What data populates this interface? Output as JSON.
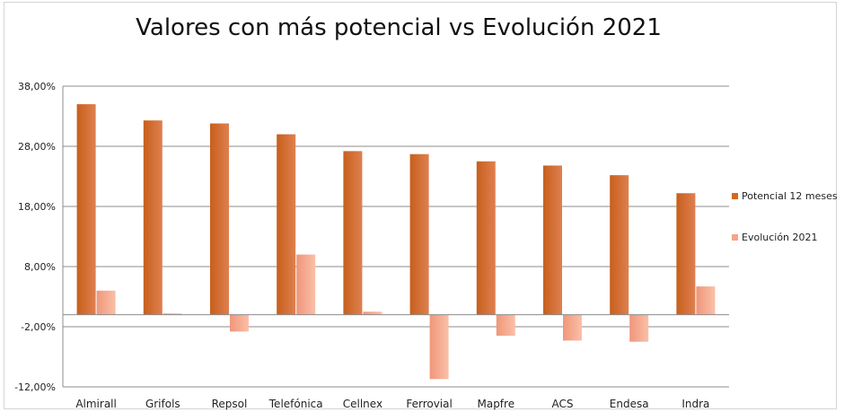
{
  "chart_data": {
    "type": "bar",
    "title": "Valores con más potencial vs Evolución 2021",
    "categories": [
      "Almirall",
      "Grifols",
      "Repsol",
      "Telefónica",
      "Cellnex",
      "Ferrovial",
      "Mapfre",
      "ACS",
      "Endesa",
      "Indra"
    ],
    "series": [
      {
        "name": "Potencial 12 meses",
        "color": "#d2691e",
        "values": [
          35.0,
          32.3,
          31.8,
          30.0,
          27.2,
          26.7,
          25.5,
          24.8,
          23.2,
          20.2
        ]
      },
      {
        "name": "Evolución 2021",
        "color": "#f4a587",
        "values": [
          4.0,
          0.2,
          -2.8,
          10.0,
          0.5,
          -10.7,
          -3.5,
          -4.3,
          -4.5,
          4.7
        ]
      }
    ],
    "ylim": [
      -12,
      38
    ],
    "yticks": [
      38,
      28,
      18,
      8,
      -2,
      -12
    ],
    "ytick_labels": [
      "38,00%",
      "28,00%",
      "18,00%",
      "8,00%",
      "-2,00%",
      "-12,00%"
    ],
    "xlabel": "",
    "ylabel": "",
    "grid": true,
    "legend_position": "right"
  }
}
